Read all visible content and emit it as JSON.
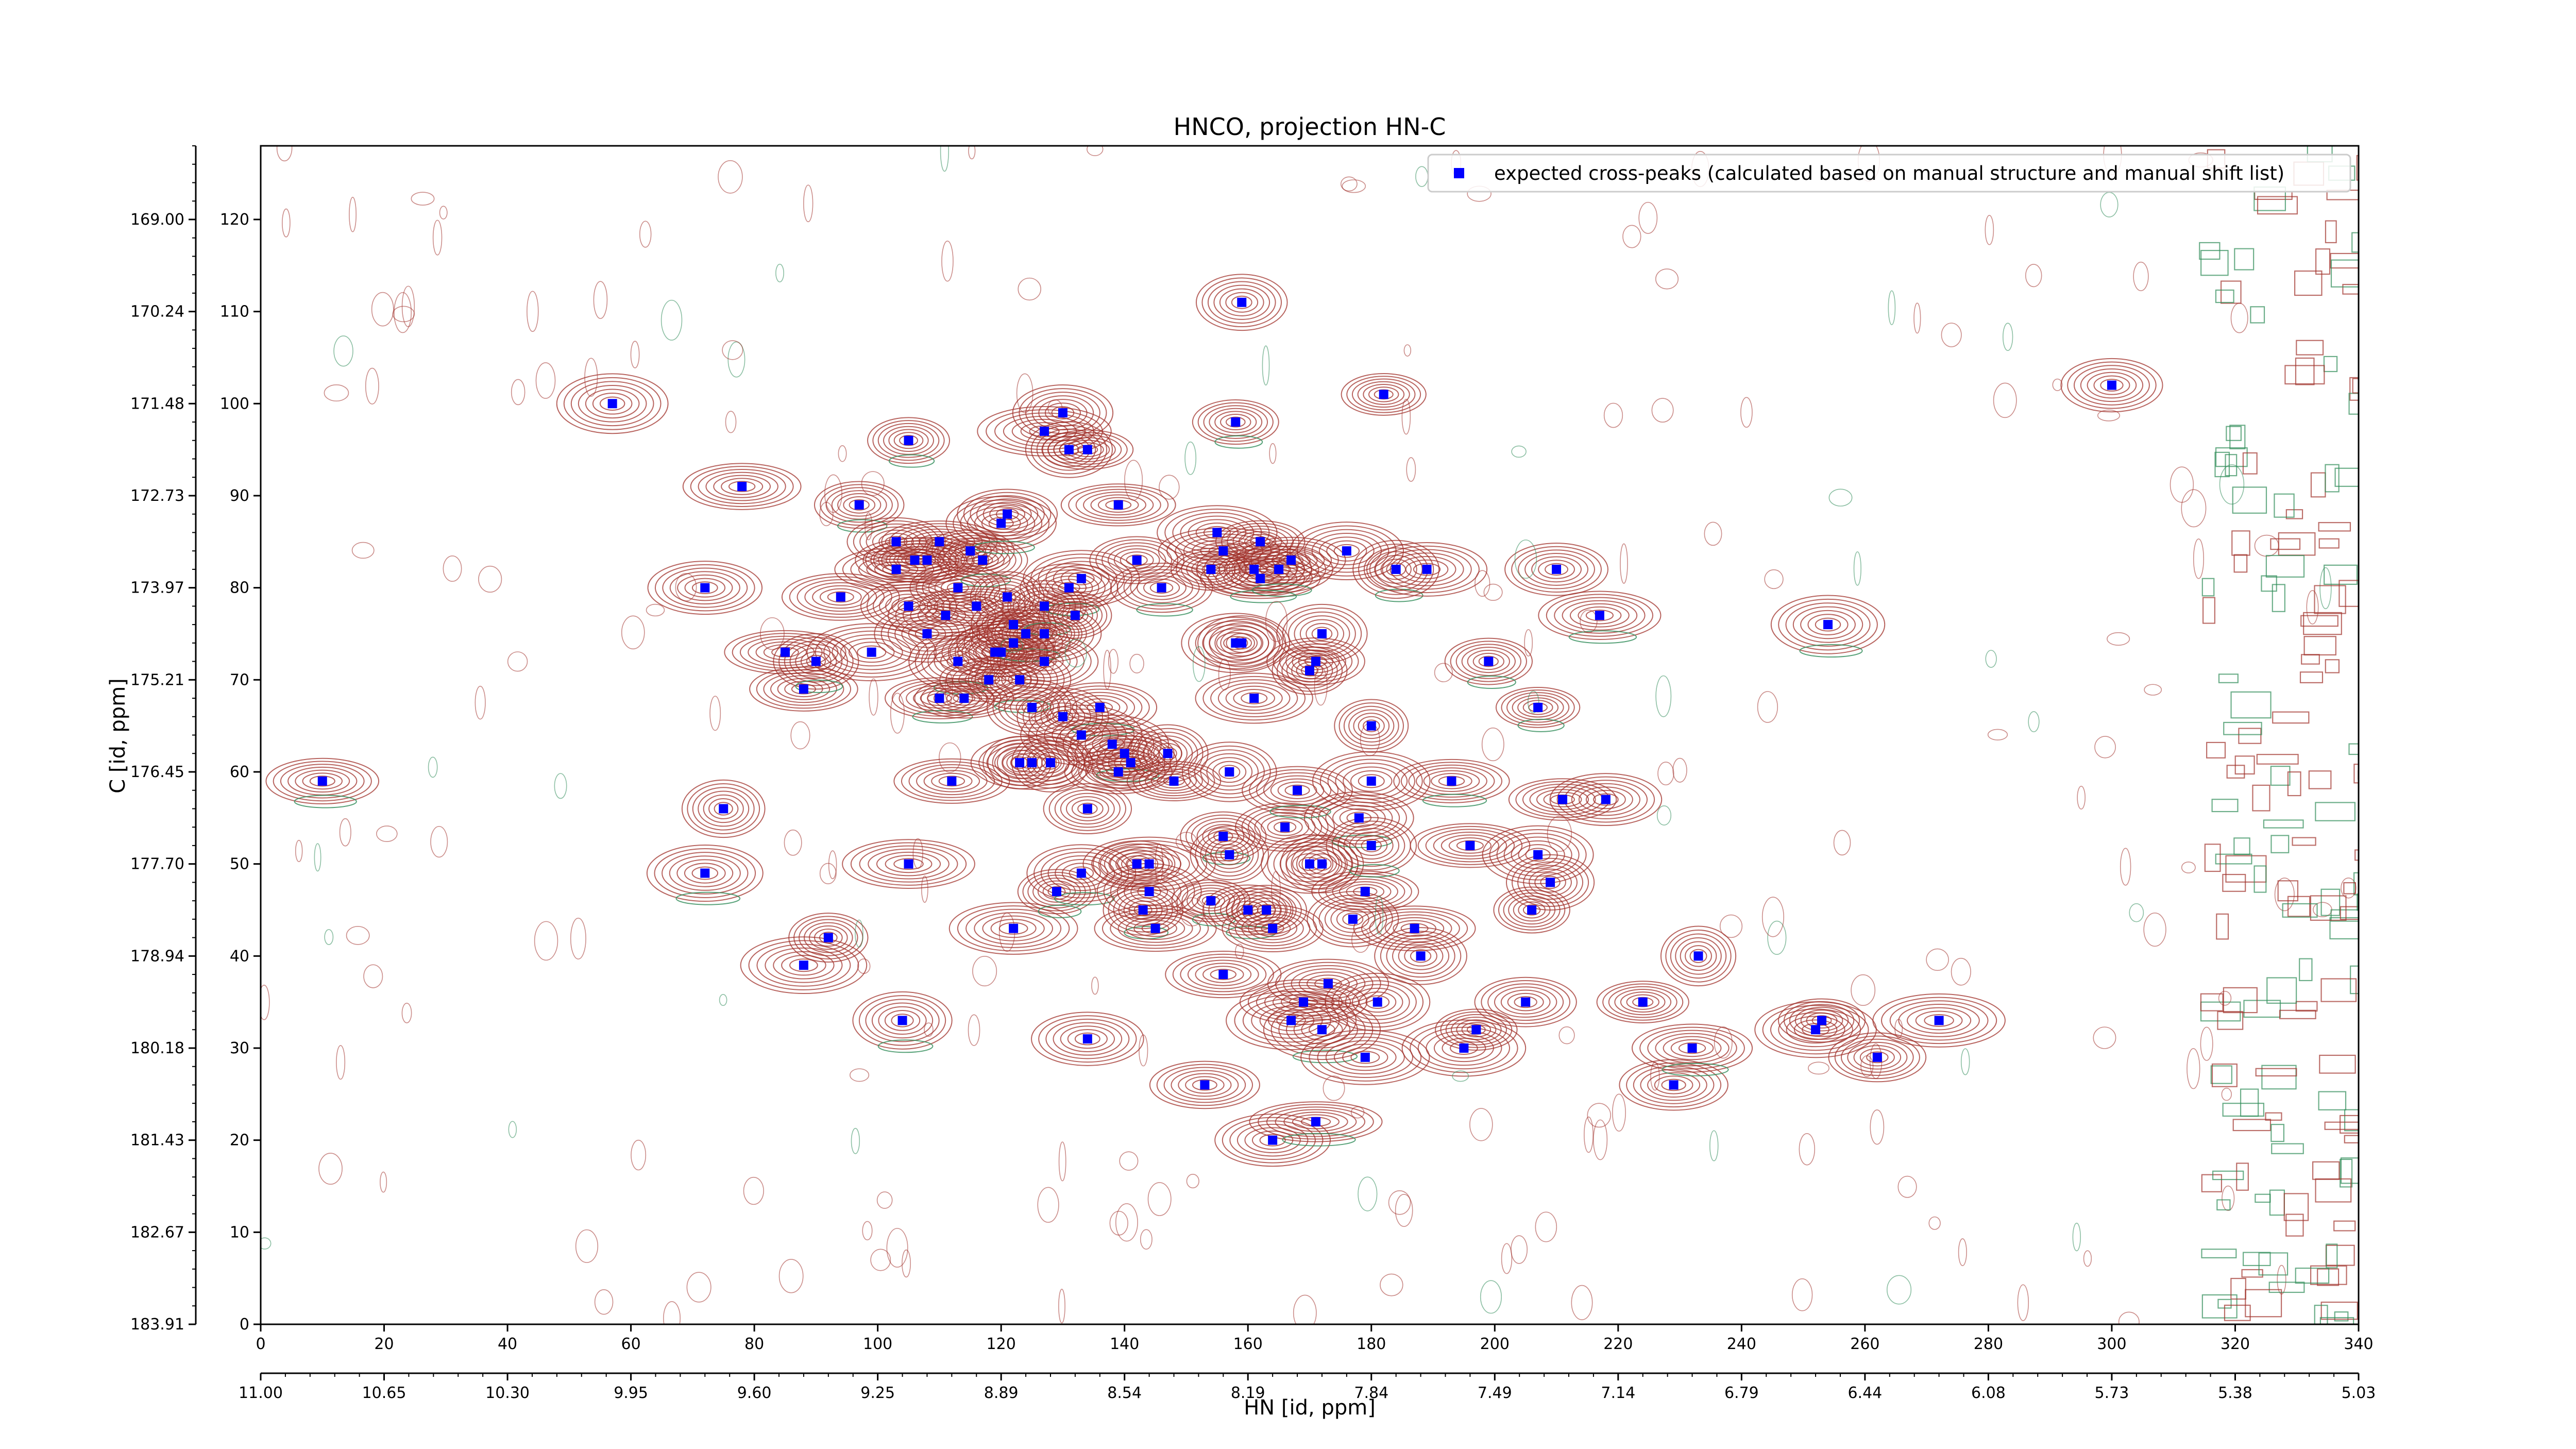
{
  "chart_data": {
    "type": "scatter",
    "title": "HNCO, projection HN-C",
    "xlabel": "HN [id, ppm]",
    "ylabel": "C [id, ppm]",
    "x_index_range": [
      0,
      340
    ],
    "y_index_range": [
      0,
      128
    ],
    "x_index_ticks": [
      "0",
      "20",
      "40",
      "60",
      "80",
      "100",
      "120",
      "140",
      "160",
      "180",
      "200",
      "220",
      "240",
      "260",
      "280",
      "300",
      "320",
      "340"
    ],
    "x_ppm_ticks": [
      "11.00",
      "10.65",
      "10.30",
      "9.95",
      "9.60",
      "9.25",
      "8.89",
      "8.54",
      "8.19",
      "7.84",
      "7.49",
      "7.14",
      "6.79",
      "6.44",
      "6.08",
      "5.73",
      "5.38",
      "5.03"
    ],
    "y_index_ticks": [
      "0",
      "10",
      "20",
      "30",
      "40",
      "50",
      "60",
      "70",
      "80",
      "90",
      "100",
      "110",
      "120"
    ],
    "y_ppm_ticks": [
      "183.91",
      "182.67",
      "181.43",
      "180.18",
      "178.94",
      "177.70",
      "176.45",
      "175.21",
      "173.97",
      "172.73",
      "171.48",
      "170.24",
      "169.00"
    ],
    "colors": {
      "positive_contour": "#a0302a",
      "negative_contour": "#2e8b57",
      "peak": "#0000ff"
    },
    "grid": false,
    "legend_position": "top-right",
    "series": [
      {
        "name": "expected cross-peaks (calculated based on manual structure and manual shift list)",
        "marker": "x",
        "points": [
          [
            10,
            59
          ],
          [
            57,
            100
          ],
          [
            72,
            80
          ],
          [
            75,
            56
          ],
          [
            72,
            49
          ],
          [
            78,
            91
          ],
          [
            85,
            73
          ],
          [
            88,
            69
          ],
          [
            90,
            72
          ],
          [
            88,
            39
          ],
          [
            92,
            42
          ],
          [
            94,
            79
          ],
          [
            97,
            89
          ],
          [
            99,
            73
          ],
          [
            103,
            85
          ],
          [
            103,
            82
          ],
          [
            105,
            96
          ],
          [
            105,
            78
          ],
          [
            105,
            50
          ],
          [
            106,
            83
          ],
          [
            104,
            33
          ],
          [
            108,
            83
          ],
          [
            108,
            75
          ],
          [
            110,
            85
          ],
          [
            110,
            68
          ],
          [
            111,
            77
          ],
          [
            112,
            59
          ],
          [
            113,
            80
          ],
          [
            113,
            72
          ],
          [
            114,
            68
          ],
          [
            115,
            84
          ],
          [
            116,
            78
          ],
          [
            117,
            83
          ],
          [
            118,
            70
          ],
          [
            119,
            73
          ],
          [
            120,
            73
          ],
          [
            120,
            87
          ],
          [
            121,
            79
          ],
          [
            121,
            88
          ],
          [
            122,
            74
          ],
          [
            123,
            70
          ],
          [
            122,
            76
          ],
          [
            122,
            43
          ],
          [
            123,
            61
          ],
          [
            124,
            75
          ],
          [
            125,
            61
          ],
          [
            125,
            67
          ],
          [
            127,
            97
          ],
          [
            127,
            78
          ],
          [
            127,
            75
          ],
          [
            127,
            72
          ],
          [
            128,
            61
          ],
          [
            129,
            47
          ],
          [
            130,
            99
          ],
          [
            130,
            66
          ],
          [
            131,
            95
          ],
          [
            131,
            80
          ],
          [
            132,
            77
          ],
          [
            133,
            81
          ],
          [
            133,
            64
          ],
          [
            133,
            49
          ],
          [
            134,
            95
          ],
          [
            134,
            56
          ],
          [
            134,
            31
          ],
          [
            136,
            67
          ],
          [
            138,
            63
          ],
          [
            139,
            89
          ],
          [
            139,
            60
          ],
          [
            140,
            62
          ],
          [
            141,
            61
          ],
          [
            142,
            83
          ],
          [
            142,
            50
          ],
          [
            143,
            45
          ],
          [
            144,
            50
          ],
          [
            144,
            47
          ],
          [
            145,
            43
          ],
          [
            146,
            80
          ],
          [
            147,
            62
          ],
          [
            148,
            59
          ],
          [
            153,
            26
          ],
          [
            154,
            46
          ],
          [
            154,
            82
          ],
          [
            155,
            86
          ],
          [
            156,
            38
          ],
          [
            156,
            53
          ],
          [
            156,
            84
          ],
          [
            157,
            51
          ],
          [
            157,
            60
          ],
          [
            158,
            98
          ],
          [
            158,
            74
          ],
          [
            159,
            74
          ],
          [
            159,
            111
          ],
          [
            160,
            45
          ],
          [
            161,
            68
          ],
          [
            161,
            82
          ],
          [
            162,
            85
          ],
          [
            162,
            81
          ],
          [
            163,
            45
          ],
          [
            164,
            43
          ],
          [
            164,
            20
          ],
          [
            165,
            82
          ],
          [
            166,
            54
          ],
          [
            167,
            83
          ],
          [
            167,
            33
          ],
          [
            168,
            58
          ],
          [
            169,
            35
          ],
          [
            170,
            71
          ],
          [
            170,
            50
          ],
          [
            171,
            22
          ],
          [
            171,
            72
          ],
          [
            172,
            50
          ],
          [
            172,
            75
          ],
          [
            172,
            32
          ],
          [
            173,
            37
          ],
          [
            176,
            84
          ],
          [
            177,
            44
          ],
          [
            178,
            55
          ],
          [
            179,
            47
          ],
          [
            179,
            29
          ],
          [
            180,
            65
          ],
          [
            180,
            52
          ],
          [
            180,
            59
          ],
          [
            181,
            35
          ],
          [
            182,
            101
          ],
          [
            184,
            82
          ],
          [
            187,
            43
          ],
          [
            188,
            40
          ],
          [
            189,
            82
          ],
          [
            193,
            59
          ],
          [
            195,
            30
          ],
          [
            196,
            52
          ],
          [
            197,
            32
          ],
          [
            199,
            72
          ],
          [
            205,
            35
          ],
          [
            206,
            45
          ],
          [
            207,
            51
          ],
          [
            207,
            67
          ],
          [
            209,
            48
          ],
          [
            210,
            82
          ],
          [
            211,
            57
          ],
          [
            217,
            77
          ],
          [
            218,
            57
          ],
          [
            224,
            35
          ],
          [
            229,
            26
          ],
          [
            232,
            30
          ],
          [
            233,
            40
          ],
          [
            252,
            32
          ],
          [
            253,
            33
          ],
          [
            254,
            76
          ],
          [
            262,
            29
          ],
          [
            272,
            33
          ],
          [
            300,
            102
          ]
        ]
      }
    ]
  },
  "figure": {
    "title": "HNCO, projection HN-C",
    "xlabel": "HN [id, ppm]",
    "ylabel": "C [id, ppm]",
    "legend_label": "expected cross-peaks (calculated based on manual structure and manual shift list)"
  }
}
